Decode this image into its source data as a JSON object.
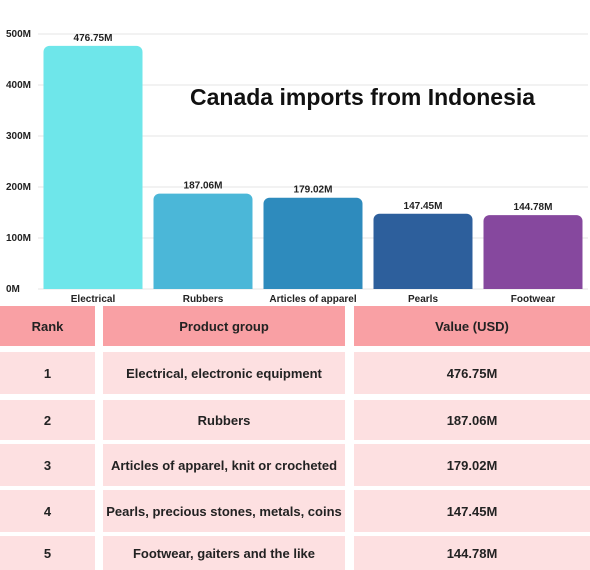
{
  "chart_data": {
    "type": "bar",
    "title": "Canada imports from Indonesia",
    "categories": [
      "Electrical",
      "Rubbers",
      "Articles of apparel",
      "Pearls",
      "Footwear"
    ],
    "values": [
      476.75,
      187.06,
      179.02,
      147.45,
      144.78
    ],
    "value_labels": [
      "476.75M",
      "187.06M",
      "179.02M",
      "147.45M",
      "144.78M"
    ],
    "colors": [
      "#6ee6ea",
      "#4bb7d8",
      "#2e8bbd",
      "#2d5f9c",
      "#86489e"
    ],
    "ylim": [
      0,
      500
    ],
    "yticks": [
      0,
      100,
      200,
      300,
      400,
      500
    ],
    "ytick_labels": [
      "0M",
      "100M",
      "200M",
      "300M",
      "400M",
      "500M"
    ],
    "grid": true,
    "xlabel": "",
    "ylabel": ""
  },
  "table": {
    "headers": [
      "Rank",
      "Product group",
      "Value (USD)"
    ],
    "header_color": "#f9a0a4",
    "row_color": "#fde0e1",
    "rows": [
      [
        "1",
        "Electrical, electronic equipment",
        "476.75M"
      ],
      [
        "2",
        "Rubbers",
        "187.06M"
      ],
      [
        "3",
        "Articles of apparel, knit or crocheted",
        "179.02M"
      ],
      [
        "4",
        "Pearls, precious stones, metals, coins",
        "147.45M"
      ],
      [
        "5",
        "Footwear, gaiters and the like",
        "144.78M"
      ]
    ]
  }
}
